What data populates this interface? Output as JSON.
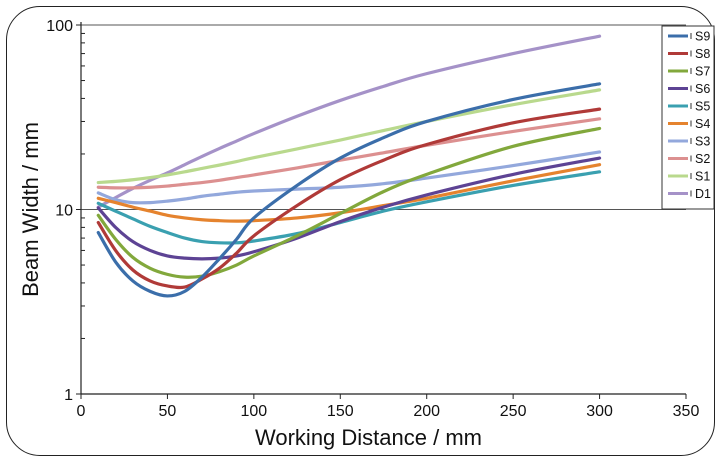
{
  "chart_data": {
    "type": "line",
    "title": "",
    "xlabel": "Working Distance / mm",
    "ylabel": "Beam Width / mm",
    "xlim": [
      0,
      350
    ],
    "ylim": [
      1,
      100
    ],
    "y_scale": "log",
    "x_ticks": [
      0,
      50,
      100,
      150,
      200,
      250,
      300,
      350
    ],
    "y_ticks": [
      1,
      10,
      100
    ],
    "grid": "horizontal line at 10 and 100",
    "legend_position": "right",
    "x": [
      10,
      20,
      30,
      40,
      50,
      60,
      70,
      80,
      90,
      100,
      125,
      150,
      175,
      200,
      250,
      300
    ],
    "series": [
      {
        "name": "S9",
        "color": "#3b6eaa",
        "values": [
          7.5,
          5.2,
          4.1,
          3.6,
          3.4,
          3.6,
          4.3,
          5.4,
          6.9,
          9.0,
          13.5,
          19.0,
          24.5,
          30.0,
          39.5,
          48.0
        ]
      },
      {
        "name": "S8",
        "color": "#b03a38",
        "values": [
          8.5,
          6.0,
          4.7,
          4.1,
          3.85,
          3.8,
          4.2,
          4.8,
          5.8,
          7.2,
          10.5,
          14.5,
          18.5,
          22.5,
          29.5,
          35.0
        ]
      },
      {
        "name": "S7",
        "color": "#82a83c",
        "values": [
          9.3,
          6.9,
          5.5,
          4.8,
          4.45,
          4.3,
          4.35,
          4.6,
          5.0,
          5.6,
          7.2,
          9.5,
          12.5,
          15.5,
          22.0,
          27.5
        ]
      },
      {
        "name": "S6",
        "color": "#5d4394",
        "values": [
          10.2,
          8.0,
          6.7,
          6.0,
          5.6,
          5.45,
          5.4,
          5.45,
          5.6,
          5.9,
          7.0,
          8.6,
          10.3,
          12.0,
          15.5,
          19.0
        ]
      },
      {
        "name": "S5",
        "color": "#3aa0b0",
        "values": [
          10.8,
          9.8,
          8.9,
          8.1,
          7.5,
          7.0,
          6.7,
          6.6,
          6.6,
          6.75,
          7.4,
          8.5,
          9.8,
          11.0,
          13.5,
          16.0
        ]
      },
      {
        "name": "S4",
        "color": "#e5832e",
        "values": [
          11.5,
          10.9,
          10.3,
          9.8,
          9.3,
          9.0,
          8.8,
          8.7,
          8.65,
          8.7,
          9.0,
          9.6,
          10.5,
          11.5,
          14.3,
          17.5
        ]
      },
      {
        "name": "S3",
        "color": "#93a8dc",
        "values": [
          12.3,
          11.3,
          10.9,
          10.9,
          11.1,
          11.4,
          11.8,
          12.1,
          12.4,
          12.6,
          12.9,
          13.2,
          13.8,
          14.8,
          17.3,
          20.5
        ]
      },
      {
        "name": "S2",
        "color": "#dc9090",
        "values": [
          13.2,
          13.1,
          13.1,
          13.2,
          13.4,
          13.7,
          14.0,
          14.4,
          14.9,
          15.4,
          16.8,
          18.5,
          20.3,
          22.3,
          26.5,
          31.0
        ]
      },
      {
        "name": "S1",
        "color": "#b9d98d",
        "values": [
          14.0,
          14.2,
          14.5,
          14.9,
          15.4,
          16.0,
          16.7,
          17.4,
          18.2,
          19.1,
          21.3,
          23.8,
          26.8,
          30.0,
          37.0,
          44.5
        ]
      },
      {
        "name": "D1",
        "color": "#a592c8",
        "values": [
          10.3,
          11.6,
          13.0,
          14.4,
          15.8,
          17.5,
          19.4,
          21.4,
          23.5,
          25.8,
          32.0,
          39.0,
          46.5,
          54.5,
          70.0,
          87.0
        ]
      }
    ]
  }
}
